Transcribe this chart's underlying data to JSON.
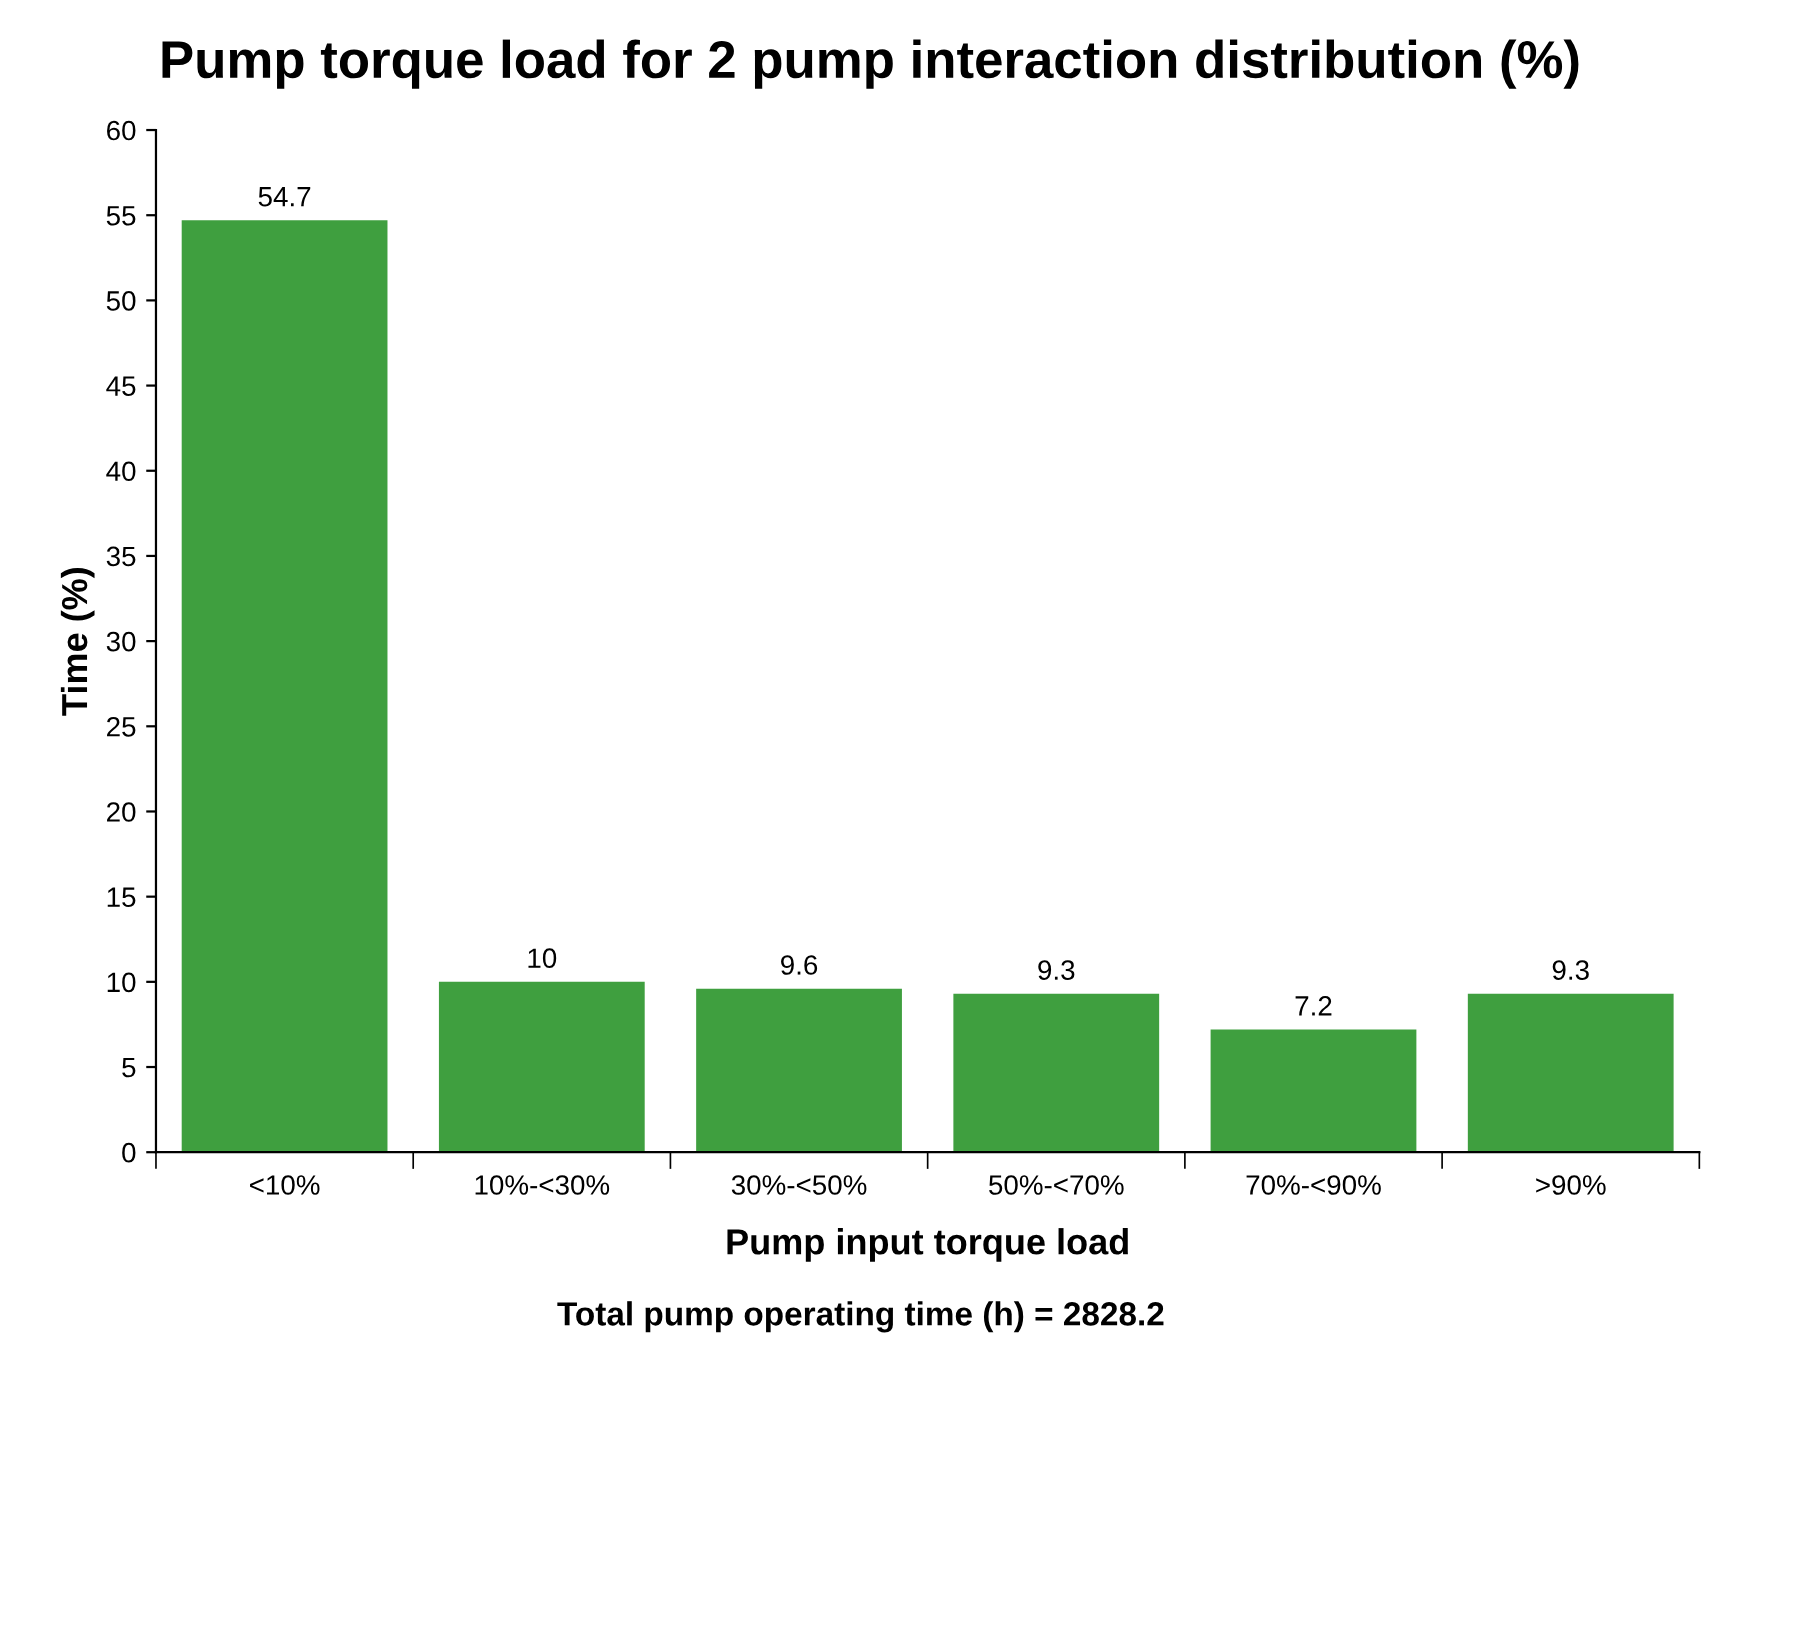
{
  "chart_data": {
    "type": "bar",
    "title": "Pump torque load for 2 pump interaction distribution (%)",
    "xlabel": "Pump input torque load",
    "ylabel": "Time (%)",
    "annotations": [
      "Total pump operating time (h) = 2828.2"
    ],
    "categories": [
      "<10%",
      "10%-<30%",
      "30%-<50%",
      "50%-<70%",
      "70%-<90%",
      ">90%"
    ],
    "values": [
      54.7,
      10,
      9.6,
      9.3,
      7.2,
      9.3
    ],
    "color": "#3f9f3f",
    "ylim": [
      0,
      60
    ],
    "yticks": [
      0,
      5,
      10,
      15,
      20,
      25,
      30,
      35,
      40,
      45,
      50,
      55,
      60
    ],
    "data_labels": true,
    "grid": false,
    "legend": false
  }
}
